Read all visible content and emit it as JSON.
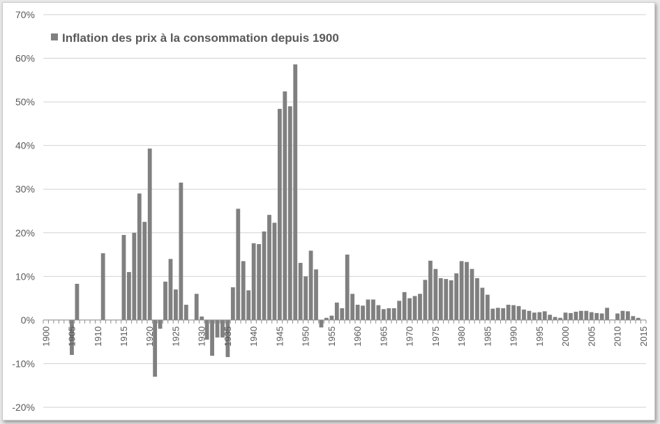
{
  "chart_data": {
    "type": "bar",
    "title": "",
    "xlabel": "",
    "ylabel": "",
    "ylim": [
      -0.2,
      0.7
    ],
    "yticks": [
      "-20%",
      "-10%",
      "0%",
      "10%",
      "20%",
      "30%",
      "40%",
      "50%",
      "60%",
      "70%"
    ],
    "xticks": [
      "1900",
      "1905",
      "1910",
      "1915",
      "1920",
      "1925",
      "1930",
      "1935",
      "1940",
      "1945",
      "1950",
      "1955",
      "1960",
      "1965",
      "1970",
      "1975",
      "1980",
      "1985",
      "1990",
      "1995",
      "2000",
      "2005",
      "2010",
      "2015"
    ],
    "grid": "horizontal",
    "legend_position": "top-left",
    "bar_color": "#808080",
    "series": [
      {
        "name": "Inflation des prix à la consommation depuis 1900",
        "x": [
          1900,
          1901,
          1902,
          1903,
          1904,
          1905,
          1906,
          1907,
          1908,
          1909,
          1910,
          1911,
          1912,
          1913,
          1914,
          1915,
          1916,
          1917,
          1918,
          1919,
          1920,
          1921,
          1922,
          1923,
          1924,
          1925,
          1926,
          1927,
          1928,
          1929,
          1930,
          1931,
          1932,
          1933,
          1934,
          1935,
          1936,
          1937,
          1938,
          1939,
          1940,
          1941,
          1942,
          1943,
          1944,
          1945,
          1946,
          1947,
          1948,
          1949,
          1950,
          1951,
          1952,
          1953,
          1954,
          1955,
          1956,
          1957,
          1958,
          1959,
          1960,
          1961,
          1962,
          1963,
          1964,
          1965,
          1966,
          1967,
          1968,
          1969,
          1970,
          1971,
          1972,
          1973,
          1974,
          1975,
          1976,
          1977,
          1978,
          1979,
          1980,
          1981,
          1982,
          1983,
          1984,
          1985,
          1986,
          1987,
          1988,
          1989,
          1990,
          1991,
          1992,
          1993,
          1994,
          1995,
          1996,
          1997,
          1998,
          1999,
          2000,
          2001,
          2002,
          2003,
          2004,
          2005,
          2006,
          2007,
          2008,
          2009,
          2010,
          2011,
          2012,
          2013,
          2014
        ],
        "values": [
          0,
          0,
          0,
          0,
          0,
          -0.08,
          0.083,
          0,
          0,
          0,
          0,
          0.153,
          0,
          0,
          0,
          0.195,
          0.11,
          0.2,
          0.29,
          0.225,
          0.393,
          -0.13,
          -0.02,
          0.088,
          0.14,
          0.07,
          0.315,
          0.035,
          0,
          0.06,
          0.008,
          -0.045,
          -0.082,
          -0.04,
          -0.04,
          -0.085,
          0.075,
          0.255,
          0.135,
          0.068,
          0.176,
          0.174,
          0.203,
          0.241,
          0.223,
          0.484,
          0.524,
          0.49,
          0.586,
          0.131,
          0.1,
          0.159,
          0.116,
          -0.017,
          0.005,
          0.01,
          0.04,
          0.027,
          0.15,
          0.06,
          0.035,
          0.033,
          0.047,
          0.047,
          0.034,
          0.025,
          0.027,
          0.027,
          0.044,
          0.064,
          0.05,
          0.055,
          0.06,
          0.092,
          0.136,
          0.117,
          0.096,
          0.094,
          0.091,
          0.107,
          0.135,
          0.133,
          0.117,
          0.096,
          0.074,
          0.058,
          0.026,
          0.028,
          0.027,
          0.035,
          0.034,
          0.032,
          0.024,
          0.021,
          0.017,
          0.018,
          0.02,
          0.012,
          0.007,
          0.005,
          0.017,
          0.016,
          0.019,
          0.021,
          0.021,
          0.018,
          0.016,
          0.015,
          0.028,
          0.001,
          0.015,
          0.021,
          0.02,
          0.009,
          0.005
        ]
      }
    ]
  }
}
